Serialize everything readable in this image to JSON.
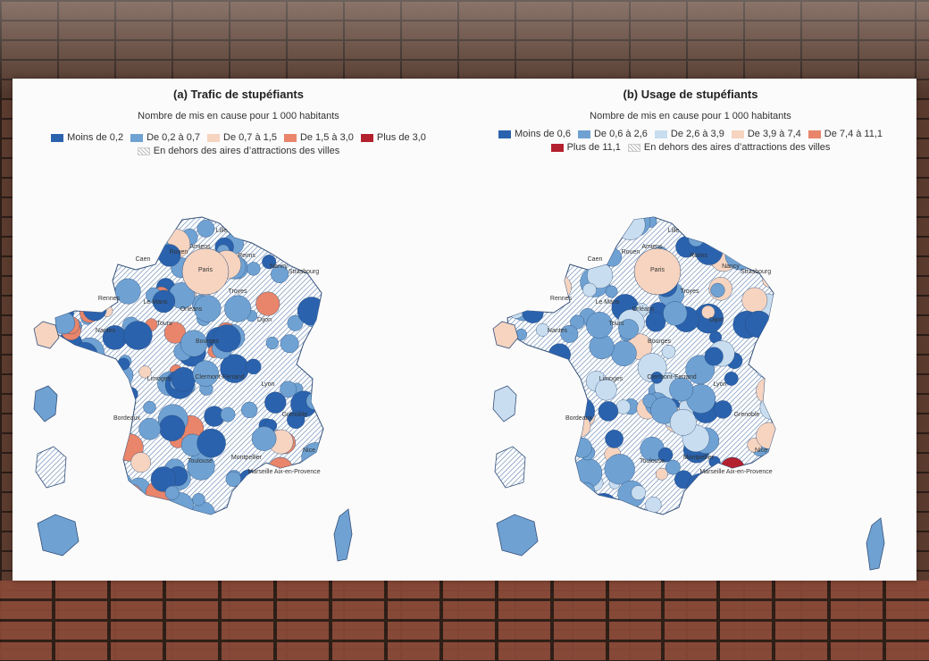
{
  "panels": [
    {
      "id": "a",
      "title": "(a) Trafic de stupéfiants",
      "subtitle": "Nombre de mis en cause pour 1 000 habitants",
      "legend": [
        {
          "label": "Moins de 0,2",
          "color": "#2a62ad"
        },
        {
          "label": "De 0,2 à 0,7",
          "color": "#6fa2d3"
        },
        {
          "label": "De 0,7 à 1,5",
          "color": "#f6d4c0"
        },
        {
          "label": "De 1,5 à 3,0",
          "color": "#e8856a"
        },
        {
          "label": "Plus de 3,0",
          "color": "#b3202e"
        },
        {
          "label": "En dehors des aires d’attractions des villes",
          "color": "hatch"
        }
      ],
      "cities": [
        {
          "name": "Lille"
        },
        {
          "name": "Amiens"
        },
        {
          "name": "Caen"
        },
        {
          "name": "Rouen"
        },
        {
          "name": "Reims"
        },
        {
          "name": "Paris"
        },
        {
          "name": "Nancy"
        },
        {
          "name": "Strasbourg"
        },
        {
          "name": "Rennes"
        },
        {
          "name": "Le Mans"
        },
        {
          "name": "Troyes"
        },
        {
          "name": "Orléans"
        },
        {
          "name": "Nantes"
        },
        {
          "name": "Tours"
        },
        {
          "name": "Dijon"
        },
        {
          "name": "Bourges"
        },
        {
          "name": "Limoges"
        },
        {
          "name": "Clermont-Ferrand"
        },
        {
          "name": "Lyon"
        },
        {
          "name": "Bordeaux"
        },
        {
          "name": "Grenoble"
        },
        {
          "name": "Toulouse"
        },
        {
          "name": "Montpellier"
        },
        {
          "name": "Marseille Aix-en-Provence"
        },
        {
          "name": "Nice"
        }
      ]
    },
    {
      "id": "b",
      "title": "(b) Usage de stupéfiants",
      "subtitle": "Nombre de mis en cause pour 1 000 habitants",
      "legend": [
        {
          "label": "Moins de 0,6",
          "color": "#2a62ad"
        },
        {
          "label": "De 0,6 à 2,6",
          "color": "#6fa2d3"
        },
        {
          "label": "De 2,6 à 3,9",
          "color": "#c8ddef"
        },
        {
          "label": "De 3,9 à 7,4",
          "color": "#f6d4c0"
        },
        {
          "label": "De 7,4 à 11,1",
          "color": "#e8856a"
        },
        {
          "label": "Plus de 11,1",
          "color": "#b3202e"
        },
        {
          "label": "En dehors des aires d’attractions des villes",
          "color": "hatch"
        }
      ],
      "cities": [
        {
          "name": "Lille"
        },
        {
          "name": "Amiens"
        },
        {
          "name": "Caen"
        },
        {
          "name": "Rouen"
        },
        {
          "name": "Reims"
        },
        {
          "name": "Paris"
        },
        {
          "name": "Nancy"
        },
        {
          "name": "Strasbourg"
        },
        {
          "name": "Rennes"
        },
        {
          "name": "Le Mans"
        },
        {
          "name": "Troyes"
        },
        {
          "name": "Orléans"
        },
        {
          "name": "Nantes"
        },
        {
          "name": "Tours"
        },
        {
          "name": "Dijon"
        },
        {
          "name": "Bourges"
        },
        {
          "name": "Limoges"
        },
        {
          "name": "Clermont-Ferrand"
        },
        {
          "name": "Lyon"
        },
        {
          "name": "Bordeaux"
        },
        {
          "name": "Grenoble"
        },
        {
          "name": "Toulouse"
        },
        {
          "name": "Montpellier"
        },
        {
          "name": "Marseille Aix-en-Provence"
        },
        {
          "name": "Nice"
        }
      ]
    }
  ]
}
